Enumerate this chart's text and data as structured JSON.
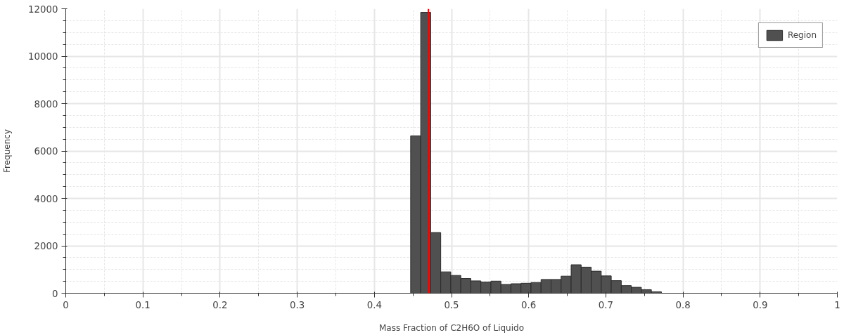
{
  "chart_data": {
    "type": "histogram",
    "xlabel": "Mass Fraction of C2H6O of Liquido",
    "ylabel": "Frequency",
    "bins": [
      0.447,
      0.46,
      0.473,
      0.486,
      0.499,
      0.512,
      0.525,
      0.538,
      0.551,
      0.564,
      0.577,
      0.59,
      0.603,
      0.616,
      0.629,
      0.642,
      0.655,
      0.668,
      0.681,
      0.694,
      0.707,
      0.72,
      0.733,
      0.746,
      0.759,
      0.772
    ],
    "series": [
      {
        "name": "Region",
        "color": "#505050",
        "values": [
          6640,
          11850,
          2560,
          900,
          750,
          620,
          520,
          470,
          510,
          370,
          400,
          420,
          450,
          580,
          580,
          720,
          1200,
          1100,
          930,
          730,
          530,
          320,
          250,
          150,
          60
        ]
      }
    ],
    "xlim": [
      0,
      1
    ],
    "xticks": [
      0,
      0.1,
      0.2,
      0.3,
      0.4,
      0.5,
      0.6,
      0.7,
      0.8,
      0.9,
      1
    ],
    "ylim": [
      0,
      12000
    ],
    "yticks": [
      0,
      2000,
      4000,
      6000,
      8000,
      10000,
      12000
    ],
    "ref_lines": [
      {
        "axis": "x",
        "value": 0.47,
        "color": "#ff0000"
      }
    ],
    "grid": true,
    "legend": "top right"
  }
}
